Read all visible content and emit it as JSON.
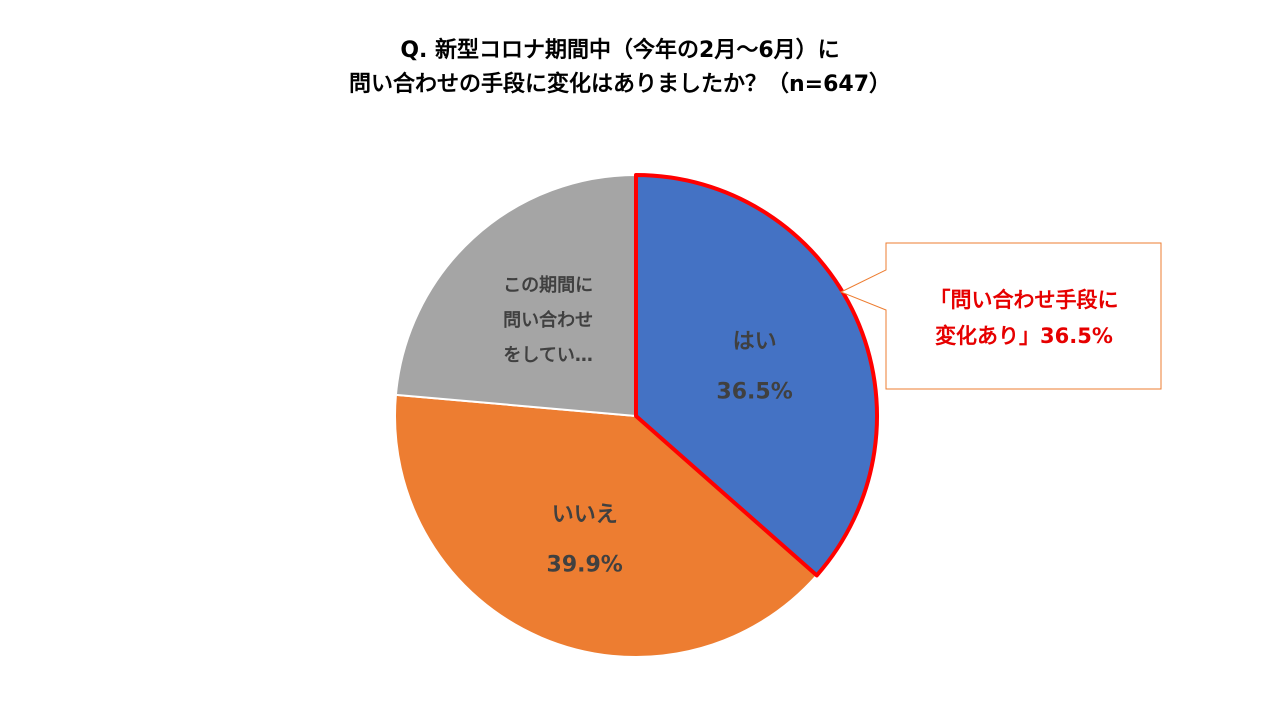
{
  "title": {
    "line1": "Q. 新型コロナ期間中（今年の2月～6月）に",
    "line2": "問い合わせの手段に変化はありましたか？（n=647）"
  },
  "chart_data": {
    "type": "pie",
    "slices": [
      {
        "label": "はい",
        "value": 36.5,
        "value_label": "36.5%",
        "color": "#4472c4",
        "highlight": true
      },
      {
        "label": "いいえ",
        "value": 39.9,
        "value_label": "39.9%",
        "color": "#ed7d31"
      },
      {
        "label_lines": [
          "この期間に",
          "問い合わせ",
          "をしてい…"
        ],
        "value": 23.6,
        "color": "#a5a5a5"
      }
    ],
    "highlight_color": "#ff0000",
    "callout": {
      "line1": "「問い合わせ手段に",
      "line2": "変化あり」36.5%",
      "border_color": "#ed7d31",
      "text_color": "#e60000"
    }
  }
}
